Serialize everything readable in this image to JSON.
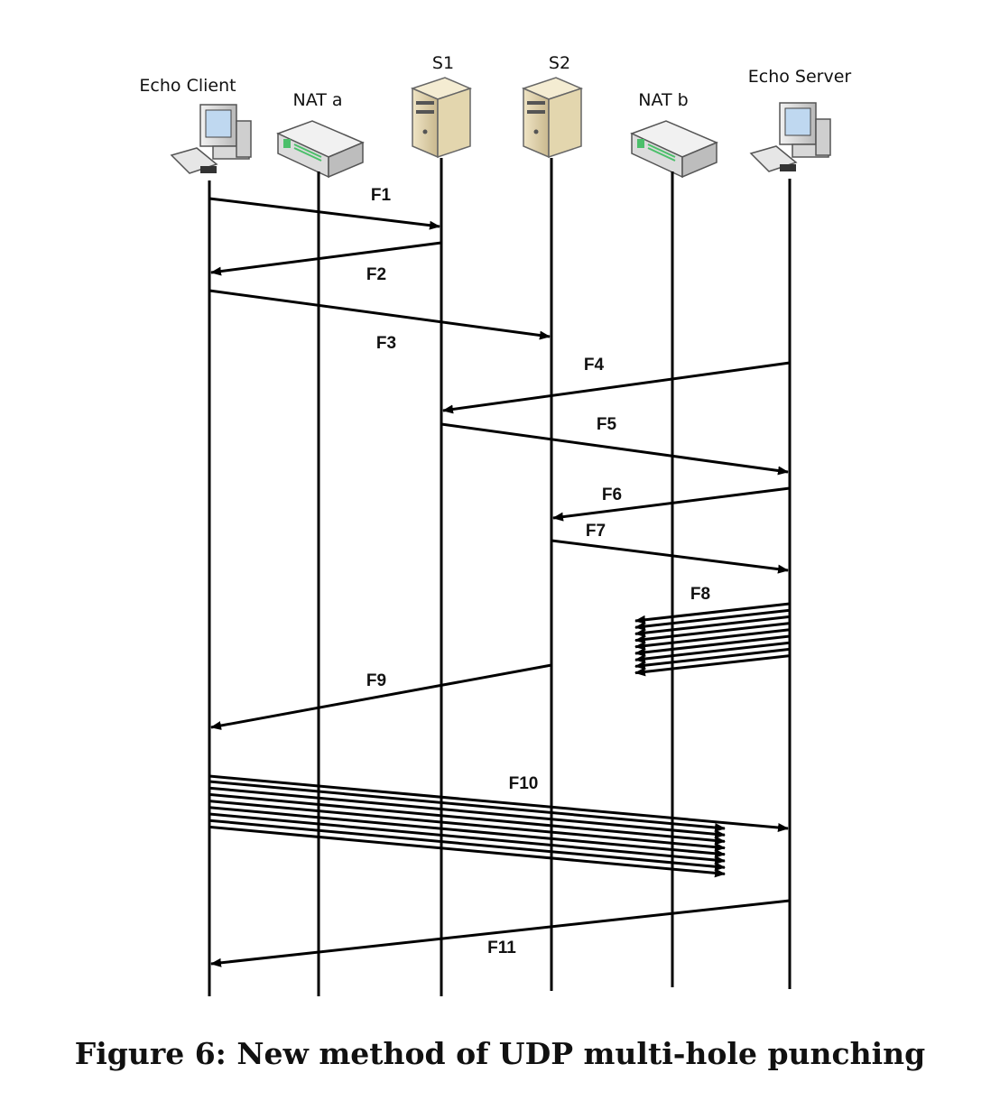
{
  "caption": "Figure 6: New method of UDP multi-hole punching",
  "participants": [
    {
      "id": "client",
      "label": "Echo Client",
      "icon": "desktop-computer-icon"
    },
    {
      "id": "nata",
      "label": "NAT a",
      "icon": "nat-router-icon"
    },
    {
      "id": "s1",
      "label": "S1",
      "icon": "server-tower-icon"
    },
    {
      "id": "s2",
      "label": "S2",
      "icon": "server-tower-icon"
    },
    {
      "id": "natb",
      "label": "NAT b",
      "icon": "nat-router-icon"
    },
    {
      "id": "server",
      "label": "Echo Server",
      "icon": "desktop-computer-icon"
    }
  ],
  "messages": [
    {
      "label": "F1",
      "from": "client",
      "to": "s1",
      "count": 1
    },
    {
      "label": "F2",
      "from": "s1",
      "to": "client",
      "count": 1
    },
    {
      "label": "F3",
      "from": "client",
      "to": "s2",
      "count": 1
    },
    {
      "label": "F4",
      "from": "server",
      "to": "s1",
      "count": 1
    },
    {
      "label": "F5",
      "from": "s1",
      "to": "server",
      "count": 1
    },
    {
      "label": "F6",
      "from": "server",
      "to": "s2",
      "count": 1
    },
    {
      "label": "F7",
      "from": "s2",
      "to": "server",
      "count": 1
    },
    {
      "label": "F8",
      "from": "server",
      "to": "natb",
      "count": 9
    },
    {
      "label": "F9",
      "from": "s2",
      "to": "client",
      "count": 1
    },
    {
      "label": "F10",
      "from": "client",
      "to": "server",
      "count": 9
    },
    {
      "label": "F11",
      "from": "server",
      "to": "client",
      "count": 1
    }
  ]
}
